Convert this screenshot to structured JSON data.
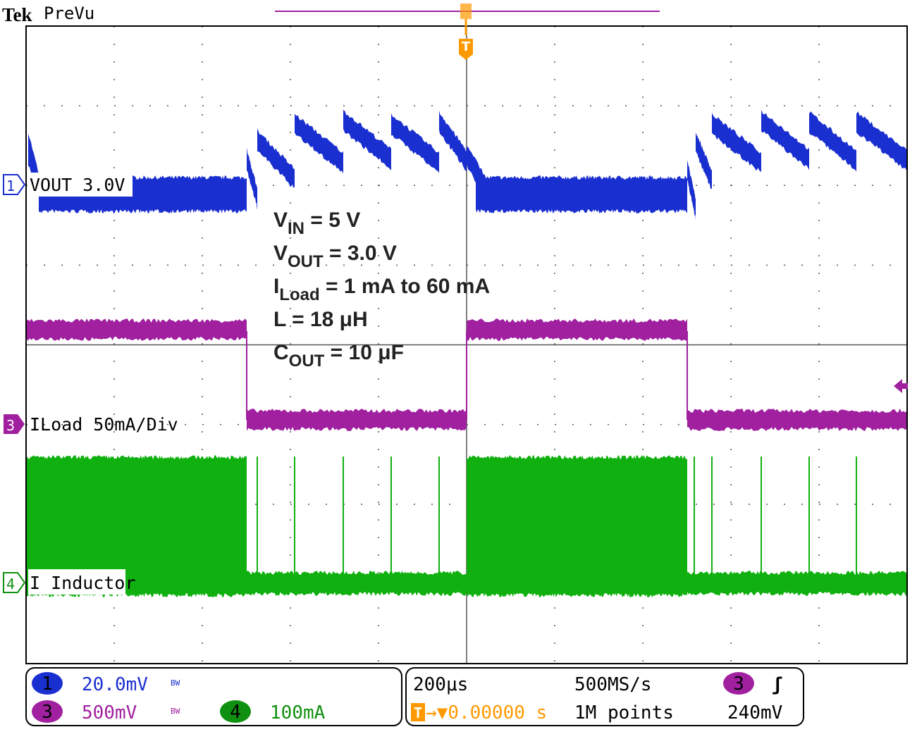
{
  "header": {
    "brand": "Tek",
    "mode": "PreVu"
  },
  "trigger_marker": "T",
  "channels": [
    {
      "marker": "1",
      "label": "VOUT 3.0V"
    },
    {
      "marker": "3",
      "label": "ILoad 50mA/Div"
    },
    {
      "marker": "4",
      "label": "I Inductor"
    }
  ],
  "annotations": [
    {
      "main": "V",
      "sub": "IN",
      "rest": " = 5 V"
    },
    {
      "main": "V",
      "sub": "OUT",
      "rest": " = 3.0 V"
    },
    {
      "main": "I",
      "sub": "Load",
      "rest": " = 1 mA to 60 mA"
    },
    {
      "main": "L = 18 μH"
    },
    {
      "main": "C",
      "sub": "OUT",
      "rest": " = 10 μF"
    }
  ],
  "status": {
    "ch1": {
      "number": "1",
      "scale": "20.0mV",
      "bw": "BW"
    },
    "ch3": {
      "number": "3",
      "scale": "500mV",
      "bw": "BW"
    },
    "ch4": {
      "number": "4",
      "scale": "100mA"
    },
    "timebase": "200μs",
    "sample_rate": "500MS/s",
    "trigger_source": "3",
    "trigger_slope": "ʃ",
    "trigger_level": "240mV",
    "trigger_icon": "T",
    "trigger_position": "→▼0.00000 s",
    "record_length": "1M points"
  }
}
